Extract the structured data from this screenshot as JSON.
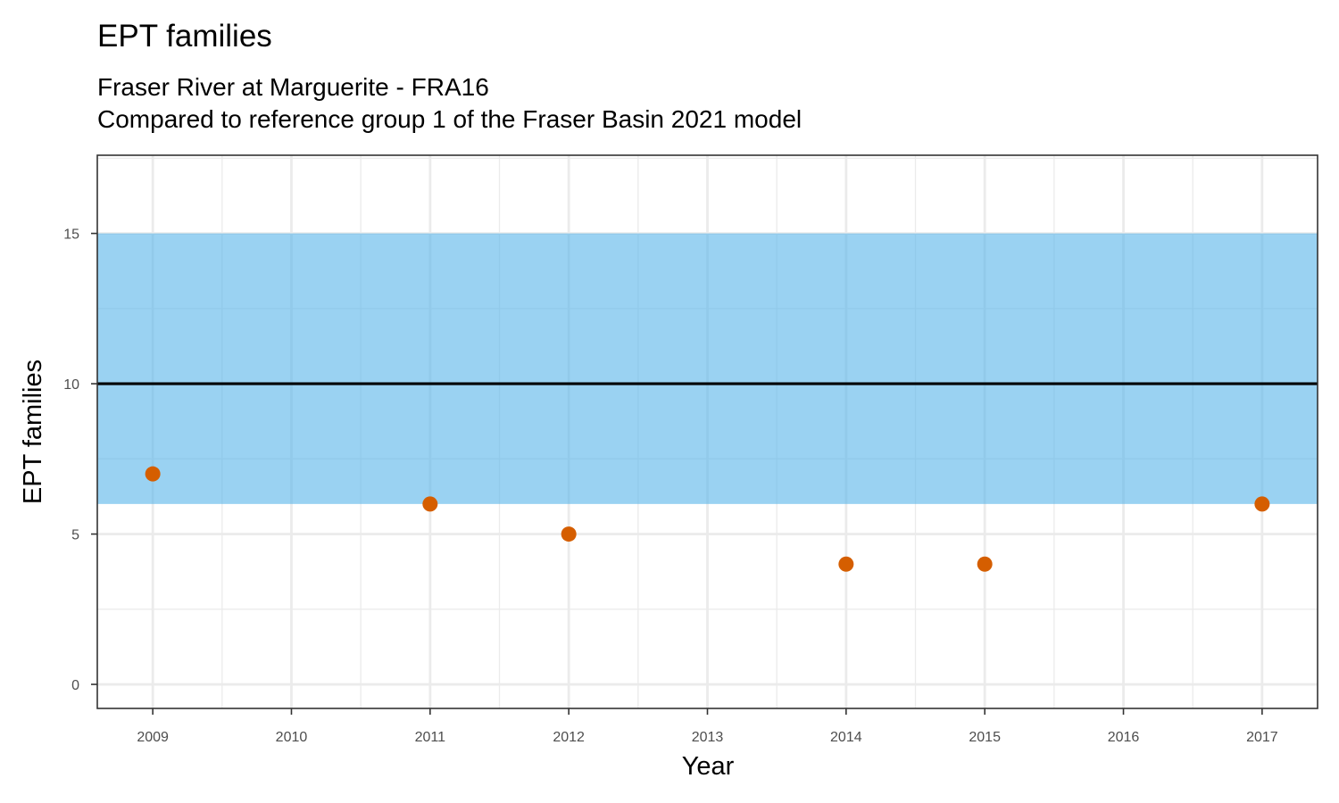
{
  "chart_data": {
    "type": "scatter",
    "title": "EPT families",
    "subtitle": [
      "Fraser River at Marguerite - FRA16",
      "Compared to reference group 1 of the Fraser Basin 2021 model"
    ],
    "xlabel": "Year",
    "ylabel": "EPT families",
    "x_ticks": [
      "2009",
      "2010",
      "2011",
      "2012",
      "2013",
      "2014",
      "2015",
      "2016",
      "2017"
    ],
    "y_ticks": [
      "0",
      "5",
      "10",
      "15"
    ],
    "xlim": [
      2008.6,
      2017.4
    ],
    "ylim": [
      -0.8,
      17.6
    ],
    "grid": true,
    "reference_band": {
      "lower": 6,
      "upper": 15,
      "color": "#56b4e9"
    },
    "reference_line": {
      "value": 10,
      "color": "#000000"
    },
    "series": [
      {
        "color": "#d55e00",
        "points": [
          {
            "x": 2009,
            "y": 7
          },
          {
            "x": 2011,
            "y": 6
          },
          {
            "x": 2012,
            "y": 5
          },
          {
            "x": 2014,
            "y": 4
          },
          {
            "x": 2015,
            "y": 4
          },
          {
            "x": 2017,
            "y": 6
          }
        ]
      }
    ]
  }
}
